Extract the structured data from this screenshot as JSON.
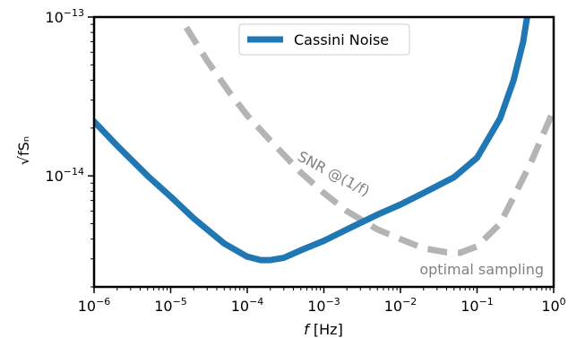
{
  "chart_data": {
    "type": "line",
    "xscale": "log",
    "yscale": "log",
    "xlim": [
      1e-06,
      1
    ],
    "ylim": [
      2e-15,
      1e-13
    ],
    "xlabel_italic": "f",
    "xlabel_rest": " [Hz]",
    "ylabel": "√fSₙ",
    "x_ticks": [
      {
        "exp": "-6"
      },
      {
        "exp": "-5"
      },
      {
        "exp": "-4"
      },
      {
        "exp": "-3"
      },
      {
        "exp": "-2"
      },
      {
        "exp": "-1"
      },
      {
        "exp": "0"
      }
    ],
    "y_ticks": [
      {
        "exp": "-14"
      },
      {
        "exp": "-13"
      }
    ],
    "tick_base": "10",
    "legend": {
      "label": "Cassini Noise",
      "placement": "top-center"
    },
    "series": [
      {
        "name": "Cassini Noise",
        "color": "#1f77b4",
        "style": "solid",
        "points": [
          [
            1e-06,
            2.2e-14
          ],
          [
            2e-06,
            1.55e-14
          ],
          [
            5e-06,
            1e-14
          ],
          [
            1e-05,
            7.4e-15
          ],
          [
            2e-05,
            5.4e-15
          ],
          [
            5e-05,
            3.75e-15
          ],
          [
            0.0001,
            3.1e-15
          ],
          [
            0.00015,
            2.95e-15
          ],
          [
            0.0002,
            2.95e-15
          ],
          [
            0.0003,
            3.05e-15
          ],
          [
            0.0005,
            3.4e-15
          ],
          [
            0.001,
            3.9e-15
          ],
          [
            0.002,
            4.6e-15
          ],
          [
            0.005,
            5.7e-15
          ],
          [
            0.01,
            6.6e-15
          ],
          [
            0.02,
            7.8e-15
          ],
          [
            0.05,
            9.8e-15
          ],
          [
            0.1,
            1.3e-14
          ],
          [
            0.2,
            2.3e-14
          ],
          [
            0.3,
            4e-14
          ],
          [
            0.4,
            7e-14
          ],
          [
            0.45,
            1e-13
          ]
        ]
      },
      {
        "name": "",
        "color": "#b4b4b4",
        "style": "dashed",
        "points": [
          [
            1.6e-05,
            8.6e-14
          ],
          [
            3e-05,
            5.3e-14
          ],
          [
            6e-05,
            3.3e-14
          ],
          [
            0.0001,
            2.4e-14
          ],
          [
            0.0002,
            1.67e-14
          ],
          [
            0.0005,
            1.05e-14
          ],
          [
            0.001,
            7.8e-15
          ],
          [
            0.002,
            6e-15
          ],
          [
            0.005,
            4.6e-15
          ],
          [
            0.01,
            4e-15
          ],
          [
            0.02,
            3.5e-15
          ],
          [
            0.04,
            3.3e-15
          ],
          [
            0.06,
            3.28e-15
          ],
          [
            0.1,
            3.6e-15
          ],
          [
            0.2,
            5e-15
          ],
          [
            0.5,
            1.2e-14
          ],
          [
            1.0,
            2.6e-14
          ]
        ]
      }
    ],
    "annotations": [
      {
        "text": "SNR @(1/f)",
        "color": "#808080"
      },
      {
        "text": "optimal sampling",
        "color": "#808080"
      }
    ]
  }
}
